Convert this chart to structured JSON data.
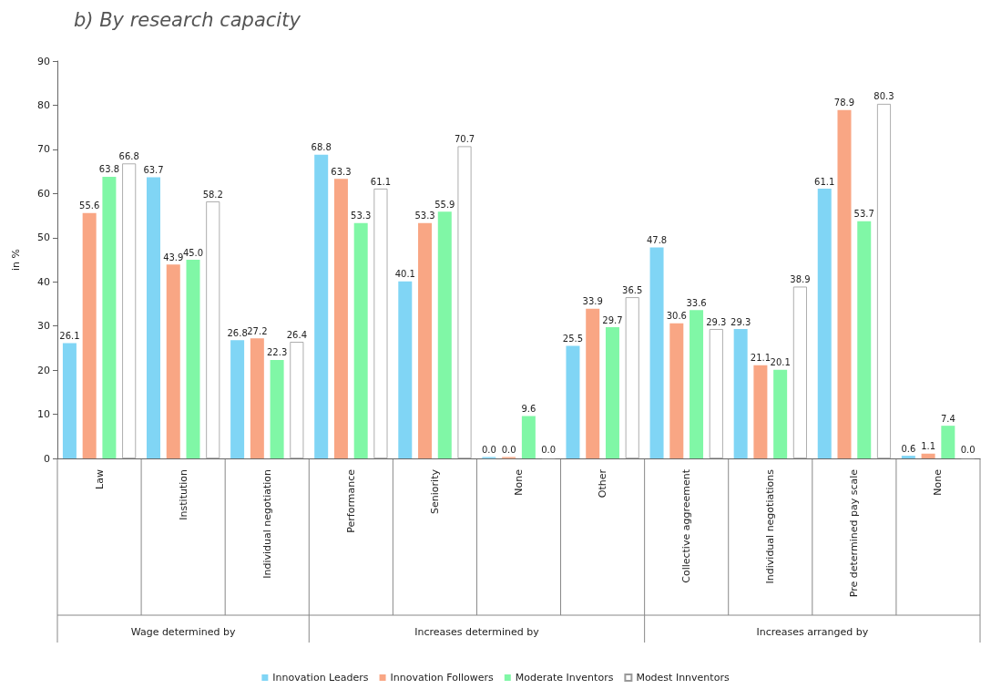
{
  "chart_data": {
    "type": "bar",
    "title": "b) By research capacity",
    "ylabel": "in %",
    "categories": [
      "Law",
      "Institution",
      "Individual negotiation",
      "Performance",
      "Seniority",
      "None",
      "Other",
      "Collective aggreement",
      "Individual negotiations",
      "Pre determined pay scale",
      "None"
    ],
    "annotations": [
      "Wage determined by",
      "Increases determined by",
      "Increases arranged by"
    ],
    "series": [
      {
        "name": "Innovation Leaders",
        "color": "#80d5f5",
        "values": [
          26.1,
          63.7,
          26.8,
          68.8,
          40.1,
          0.0,
          25.5,
          47.8,
          29.3,
          61.1,
          0.6
        ],
        "value_labels": [
          "26.1",
          "63.7",
          "26.8",
          "68.8",
          "40.1",
          "0.0",
          "25.5",
          "47.8",
          "29.3",
          "61.1",
          "0.6"
        ]
      },
      {
        "name": "Innovation Followers",
        "color": "#f9a684",
        "values": [
          55.6,
          43.9,
          27.2,
          63.3,
          53.3,
          0.0,
          33.9,
          30.6,
          21.1,
          78.9,
          1.1
        ],
        "value_labels": [
          "55.6",
          "43.9",
          "27.2",
          "63.3",
          "53.3",
          "0.0",
          "33.9",
          "30.6",
          "21.1",
          "78.9",
          "1.1"
        ]
      },
      {
        "name": "Moderate Inventors",
        "color": "#80f7a6",
        "values": [
          63.8,
          45.0,
          22.3,
          53.3,
          55.9,
          9.6,
          29.7,
          33.6,
          20.1,
          53.7,
          7.4
        ],
        "value_labels": [
          "63.8",
          "45.0",
          "22.3",
          "53.3",
          "55.9",
          "9.6",
          "29.7",
          "33.6",
          "20.1",
          "53.7",
          "7.4"
        ]
      },
      {
        "name": "Modest Innventors",
        "color": "#ffffff",
        "values": [
          66.8,
          58.2,
          26.4,
          61.1,
          70.7,
          0.0,
          36.5,
          29.3,
          38.9,
          80.3,
          0.0
        ],
        "value_labels": [
          "66.8",
          "58.2",
          "26.4",
          "61.1",
          "70.7",
          "0.0",
          "36.5",
          "29.3",
          "38.9",
          "80.3",
          "0.0"
        ]
      }
    ],
    "ylim": [
      0,
      90
    ],
    "yticks": [
      0,
      10,
      20,
      30,
      40,
      50,
      60,
      70,
      80,
      90
    ],
    "grid": false,
    "legend": "bottom"
  }
}
